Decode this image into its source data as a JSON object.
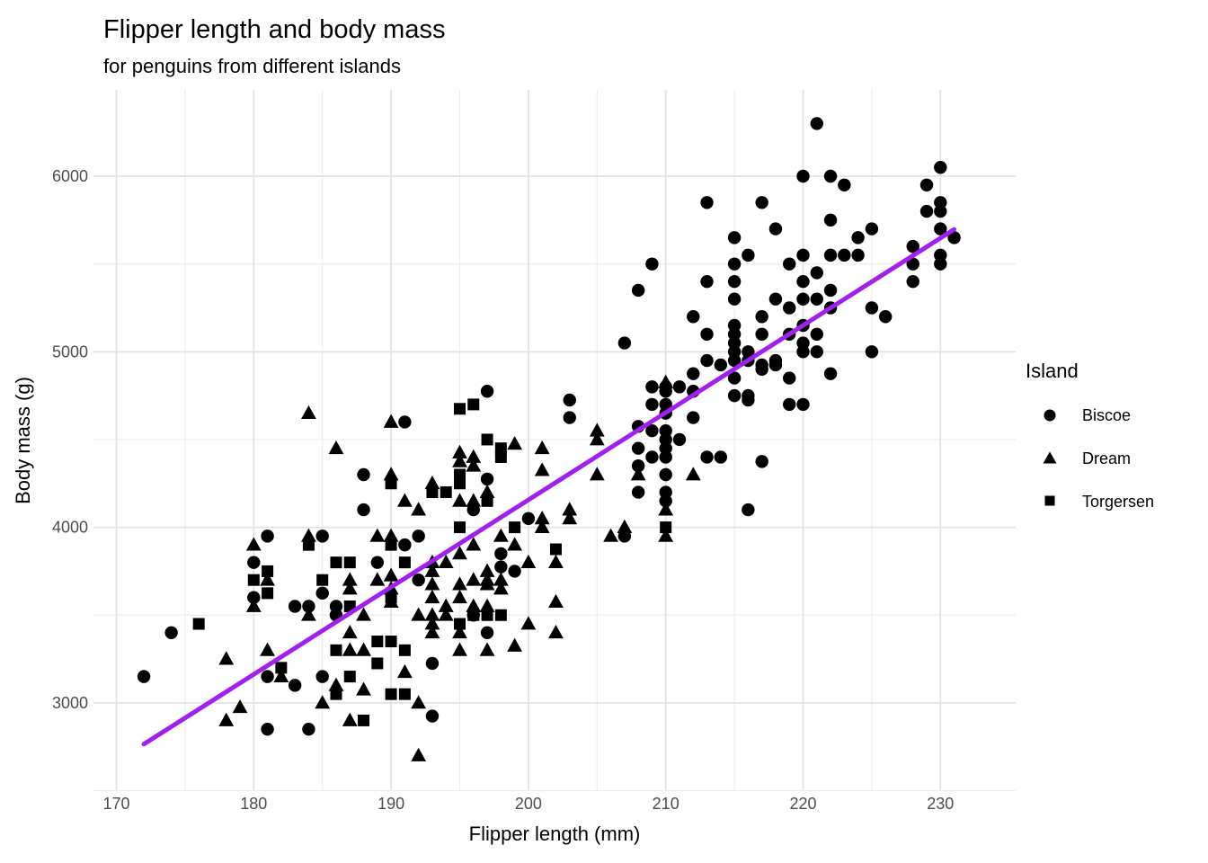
{
  "chart_data": {
    "type": "scatter",
    "title": "Flipper length and body mass",
    "subtitle": "for penguins from different islands",
    "xlabel": "Flipper length (mm)",
    "ylabel": "Body mass (g)",
    "xlim": [
      168.4,
      233.6
    ],
    "ylim": [
      2520,
      6500
    ],
    "x_ticks": [
      170,
      180,
      190,
      200,
      210,
      220,
      230
    ],
    "x_minor": [
      175,
      185,
      195,
      205,
      215,
      225
    ],
    "y_ticks": [
      3000,
      4000,
      5000,
      6000
    ],
    "y_minor": [
      2500,
      3500,
      4500,
      5500,
      6500
    ],
    "grid": true,
    "legend_position": "right",
    "point_color": "#000000",
    "grid_major_color": "#e3e3e3",
    "grid_minor_color": "#ededed",
    "tick_label_color": "#4d4d4d",
    "trend_line": {
      "x1": 172,
      "y1": 2765,
      "x2": 231,
      "y2": 5697,
      "color": "#a020f0",
      "width": 5
    },
    "series": [
      {
        "name": "Biscoe",
        "marker": "circle",
        "points": [
          [
            172,
            3150
          ],
          [
            174,
            3400
          ],
          [
            180,
            3800
          ],
          [
            180,
            3600
          ],
          [
            181,
            3950
          ],
          [
            181,
            3150
          ],
          [
            181,
            2850
          ],
          [
            183,
            3550
          ],
          [
            183,
            3100
          ],
          [
            184,
            3550
          ],
          [
            184,
            2850
          ],
          [
            185,
            3950
          ],
          [
            185,
            3625
          ],
          [
            185,
            3150
          ],
          [
            186,
            3550
          ],
          [
            186,
            3500
          ],
          [
            188,
            4300
          ],
          [
            188,
            4100
          ],
          [
            189,
            3800
          ],
          [
            191,
            4600
          ],
          [
            191,
            3900
          ],
          [
            192,
            3950
          ],
          [
            192,
            3700
          ],
          [
            193,
            3225
          ],
          [
            193,
            2925
          ],
          [
            196,
            4100
          ],
          [
            196,
            3500
          ],
          [
            197,
            4775
          ],
          [
            197,
            4275
          ],
          [
            197,
            3400
          ],
          [
            198,
            3850
          ],
          [
            198,
            3775
          ],
          [
            199,
            3750
          ],
          [
            200,
            4050
          ],
          [
            203,
            4725
          ],
          [
            203,
            4625
          ],
          [
            207,
            5050
          ],
          [
            207,
            3950
          ],
          [
            208,
            5350
          ],
          [
            208,
            4575
          ],
          [
            208,
            4450
          ],
          [
            208,
            4350
          ],
          [
            208,
            4200
          ],
          [
            209,
            5500
          ],
          [
            209,
            4800
          ],
          [
            209,
            4700
          ],
          [
            209,
            4550
          ],
          [
            209,
            4400
          ],
          [
            210,
            4800
          ],
          [
            210,
            4775
          ],
          [
            210,
            4700
          ],
          [
            210,
            4650
          ],
          [
            210,
            4550
          ],
          [
            210,
            4500
          ],
          [
            210,
            4450
          ],
          [
            210,
            4400
          ],
          [
            210,
            4300
          ],
          [
            210,
            4200
          ],
          [
            210,
            4150
          ],
          [
            211,
            4800
          ],
          [
            211,
            4500
          ],
          [
            212,
            5200
          ],
          [
            212,
            4875
          ],
          [
            212,
            4775
          ],
          [
            212,
            4625
          ],
          [
            213,
            5850
          ],
          [
            213,
            5400
          ],
          [
            213,
            5100
          ],
          [
            213,
            4950
          ],
          [
            213,
            4400
          ],
          [
            214,
            4925
          ],
          [
            214,
            4400
          ],
          [
            215,
            5650
          ],
          [
            215,
            5500
          ],
          [
            215,
            5400
          ],
          [
            215,
            5300
          ],
          [
            215,
            5150
          ],
          [
            215,
            5100
          ],
          [
            215,
            5050
          ],
          [
            215,
            5000
          ],
          [
            215,
            4950
          ],
          [
            215,
            4850
          ],
          [
            215,
            4750
          ],
          [
            216,
            5550
          ],
          [
            216,
            5000
          ],
          [
            216,
            4950
          ],
          [
            216,
            4750
          ],
          [
            216,
            4725
          ],
          [
            216,
            4100
          ],
          [
            217,
            5850
          ],
          [
            217,
            5200
          ],
          [
            217,
            5100
          ],
          [
            217,
            4925
          ],
          [
            217,
            4900
          ],
          [
            217,
            4375
          ],
          [
            218,
            5700
          ],
          [
            218,
            5300
          ],
          [
            218,
            4950
          ],
          [
            218,
            4925
          ],
          [
            219,
            5500
          ],
          [
            219,
            5250
          ],
          [
            219,
            5100
          ],
          [
            219,
            4850
          ],
          [
            219,
            4700
          ],
          [
            220,
            6000
          ],
          [
            220,
            5550
          ],
          [
            220,
            5400
          ],
          [
            220,
            5300
          ],
          [
            220,
            5150
          ],
          [
            220,
            5050
          ],
          [
            220,
            5000
          ],
          [
            220,
            4700
          ],
          [
            221,
            6300
          ],
          [
            221,
            5450
          ],
          [
            221,
            5300
          ],
          [
            221,
            5100
          ],
          [
            221,
            5000
          ],
          [
            222,
            6000
          ],
          [
            222,
            5750
          ],
          [
            222,
            5550
          ],
          [
            222,
            5350
          ],
          [
            222,
            5250
          ],
          [
            222,
            4875
          ],
          [
            223,
            5950
          ],
          [
            223,
            5550
          ],
          [
            224,
            5650
          ],
          [
            224,
            5550
          ],
          [
            225,
            5700
          ],
          [
            225,
            5250
          ],
          [
            225,
            5000
          ],
          [
            226,
            5200
          ],
          [
            228,
            5600
          ],
          [
            228,
            5500
          ],
          [
            228,
            5400
          ],
          [
            229,
            5950
          ],
          [
            229,
            5800
          ],
          [
            230,
            6050
          ],
          [
            230,
            5850
          ],
          [
            230,
            5800
          ],
          [
            230,
            5700
          ],
          [
            230,
            5550
          ],
          [
            230,
            5500
          ],
          [
            231,
            5650
          ]
        ]
      },
      {
        "name": "Dream",
        "marker": "triangle",
        "points": [
          [
            178,
            3250
          ],
          [
            178,
            2900
          ],
          [
            179,
            2975
          ],
          [
            180,
            3900
          ],
          [
            180,
            3550
          ],
          [
            181,
            3700
          ],
          [
            181,
            3300
          ],
          [
            182,
            3150
          ],
          [
            184,
            4650
          ],
          [
            184,
            3950
          ],
          [
            184,
            3500
          ],
          [
            185,
            3000
          ],
          [
            186,
            4450
          ],
          [
            186,
            3100
          ],
          [
            187,
            3700
          ],
          [
            187,
            3650
          ],
          [
            187,
            3400
          ],
          [
            187,
            3300
          ],
          [
            187,
            2900
          ],
          [
            188,
            3500
          ],
          [
            188,
            3300
          ],
          [
            188,
            3075
          ],
          [
            189,
            3950
          ],
          [
            189,
            3700
          ],
          [
            190,
            4600
          ],
          [
            190,
            4300
          ],
          [
            190,
            3950
          ],
          [
            190,
            3725
          ],
          [
            190,
            3650
          ],
          [
            190,
            3575
          ],
          [
            191,
            4150
          ],
          [
            191,
            3175
          ],
          [
            192,
            4100
          ],
          [
            192,
            3500
          ],
          [
            192,
            3000
          ],
          [
            192,
            2700
          ],
          [
            193,
            4250
          ],
          [
            193,
            3800
          ],
          [
            193,
            3750
          ],
          [
            193,
            3675
          ],
          [
            193,
            3600
          ],
          [
            193,
            3500
          ],
          [
            193,
            3450
          ],
          [
            193,
            3400
          ],
          [
            194,
            3800
          ],
          [
            194,
            3550
          ],
          [
            194,
            3500
          ],
          [
            195,
            4425
          ],
          [
            195,
            4375
          ],
          [
            195,
            4150
          ],
          [
            195,
            3850
          ],
          [
            195,
            3675
          ],
          [
            195,
            3600
          ],
          [
            195,
            3400
          ],
          [
            195,
            3300
          ],
          [
            196,
            4400
          ],
          [
            196,
            4350
          ],
          [
            196,
            4150
          ],
          [
            196,
            3900
          ],
          [
            196,
            3700
          ],
          [
            196,
            3550
          ],
          [
            197,
            4200
          ],
          [
            197,
            3750
          ],
          [
            197,
            3700
          ],
          [
            197,
            3675
          ],
          [
            197,
            3550
          ],
          [
            197,
            3300
          ],
          [
            198,
            3950
          ],
          [
            198,
            3700
          ],
          [
            198,
            3650
          ],
          [
            199,
            4475
          ],
          [
            199,
            3900
          ],
          [
            199,
            3325
          ],
          [
            200,
            3800
          ],
          [
            200,
            3450
          ],
          [
            201,
            4450
          ],
          [
            201,
            4325
          ],
          [
            201,
            4050
          ],
          [
            201,
            4000
          ],
          [
            202,
            3800
          ],
          [
            202,
            3575
          ],
          [
            202,
            3400
          ],
          [
            203,
            4100
          ],
          [
            203,
            4050
          ],
          [
            205,
            4550
          ],
          [
            205,
            4500
          ],
          [
            205,
            4300
          ],
          [
            206,
            3950
          ],
          [
            207,
            4000
          ],
          [
            208,
            4300
          ],
          [
            210,
            4825
          ],
          [
            210,
            4100
          ],
          [
            210,
            3950
          ],
          [
            212,
            4300
          ]
        ]
      },
      {
        "name": "Torgersen",
        "marker": "square",
        "points": [
          [
            176,
            3450
          ],
          [
            180,
            3700
          ],
          [
            181,
            3750
          ],
          [
            181,
            3625
          ],
          [
            182,
            3200
          ],
          [
            184,
            3900
          ],
          [
            185,
            3700
          ],
          [
            186,
            3800
          ],
          [
            186,
            3300
          ],
          [
            186,
            3050
          ],
          [
            187,
            3800
          ],
          [
            187,
            3550
          ],
          [
            187,
            3150
          ],
          [
            188,
            2900
          ],
          [
            189,
            3350
          ],
          [
            189,
            3225
          ],
          [
            190,
            4250
          ],
          [
            190,
            3900
          ],
          [
            190,
            3600
          ],
          [
            190,
            3350
          ],
          [
            190,
            3050
          ],
          [
            191,
            3800
          ],
          [
            191,
            3300
          ],
          [
            191,
            3050
          ],
          [
            193,
            4200
          ],
          [
            194,
            4200
          ],
          [
            195,
            4675
          ],
          [
            195,
            4300
          ],
          [
            195,
            4250
          ],
          [
            195,
            4000
          ],
          [
            195,
            3450
          ],
          [
            196,
            4700
          ],
          [
            196,
            3500
          ],
          [
            197,
            4500
          ],
          [
            197,
            4150
          ],
          [
            197,
            3500
          ],
          [
            198,
            4450
          ],
          [
            198,
            4400
          ],
          [
            198,
            3500
          ],
          [
            199,
            4000
          ],
          [
            202,
            3875
          ],
          [
            210,
            4000
          ]
        ]
      }
    ]
  },
  "header": {
    "title": "Flipper length and body mass",
    "subtitle": "for penguins from different islands"
  },
  "axes": {
    "x_title": "Flipper length (mm)",
    "y_title": "Body mass (g)",
    "x_tick_labels": [
      "170",
      "180",
      "190",
      "200",
      "210",
      "220",
      "230"
    ],
    "y_tick_labels": [
      "3000",
      "4000",
      "5000",
      "6000"
    ]
  },
  "legend": {
    "title": "Island",
    "items": [
      {
        "label": "Biscoe",
        "marker": "circle-icon"
      },
      {
        "label": "Dream",
        "marker": "triangle-icon"
      },
      {
        "label": "Torgersen",
        "marker": "square-icon"
      }
    ]
  }
}
